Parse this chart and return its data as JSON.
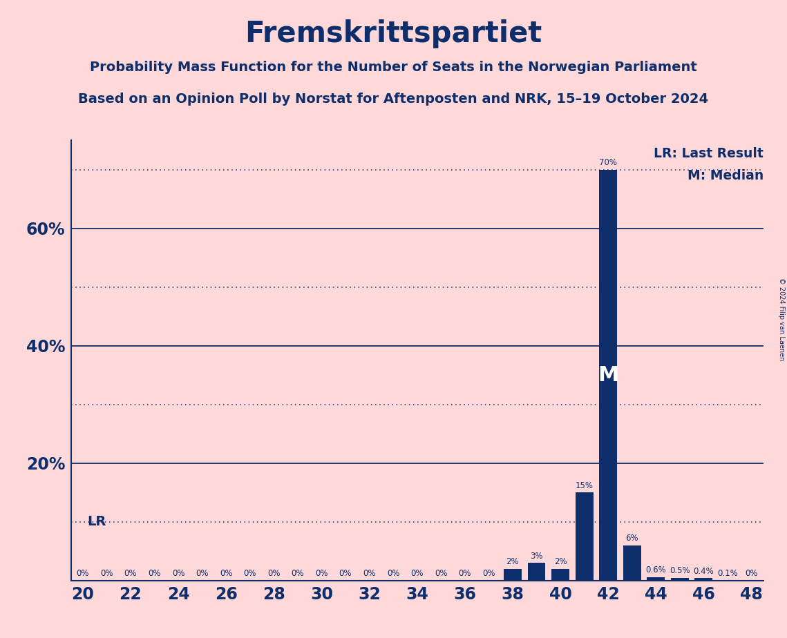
{
  "title": "Fremskrittspartiet",
  "subtitle1": "Probability Mass Function for the Number of Seats in the Norwegian Parliament",
  "subtitle2": "Based on an Opinion Poll by Norstat for Aftenposten and NRK, 15–19 October 2024",
  "copyright": "© 2024 Filip van Laenen",
  "background_color": "#FFD9D9",
  "bar_color": "#0D2D6B",
  "title_color": "#0D2D6B",
  "seats": [
    20,
    21,
    22,
    23,
    24,
    25,
    26,
    27,
    28,
    29,
    30,
    31,
    32,
    33,
    34,
    35,
    36,
    37,
    38,
    39,
    40,
    41,
    42,
    43,
    44,
    45,
    46,
    47,
    48
  ],
  "probabilities": [
    0.0,
    0.0,
    0.0,
    0.0,
    0.0,
    0.0,
    0.0,
    0.0,
    0.0,
    0.0,
    0.0,
    0.0,
    0.0,
    0.0,
    0.0,
    0.0,
    0.0,
    0.0,
    2.0,
    3.0,
    2.0,
    15.0,
    70.0,
    6.0,
    0.6,
    0.5,
    0.4,
    0.1,
    0.0
  ],
  "labels": [
    "0%",
    "0%",
    "0%",
    "0%",
    "0%",
    "0%",
    "0%",
    "0%",
    "0%",
    "0%",
    "0%",
    "0%",
    "0%",
    "0%",
    "0%",
    "0%",
    "0%",
    "0%",
    "2%",
    "3%",
    "2%",
    "15%",
    "70%",
    "6%",
    "0.6%",
    "0.5%",
    "0.4%",
    "0.1%",
    "0%"
  ],
  "median": 42,
  "last_result_line_y": 10.0,
  "ylim": [
    0,
    75
  ],
  "major_gridlines": [
    20,
    40,
    60
  ],
  "dotted_gridlines": [
    10,
    30,
    50,
    70
  ],
  "xlim": [
    19.5,
    48.5
  ],
  "xticks": [
    20,
    22,
    24,
    26,
    28,
    30,
    32,
    34,
    36,
    38,
    40,
    42,
    44,
    46,
    48
  ],
  "bar_width": 0.75,
  "legend_lr": "LR: Last Result",
  "legend_m": "M: Median",
  "ytick_positions": [
    20,
    40,
    60
  ],
  "ytick_labels": [
    "20%",
    "40%",
    "60%"
  ]
}
